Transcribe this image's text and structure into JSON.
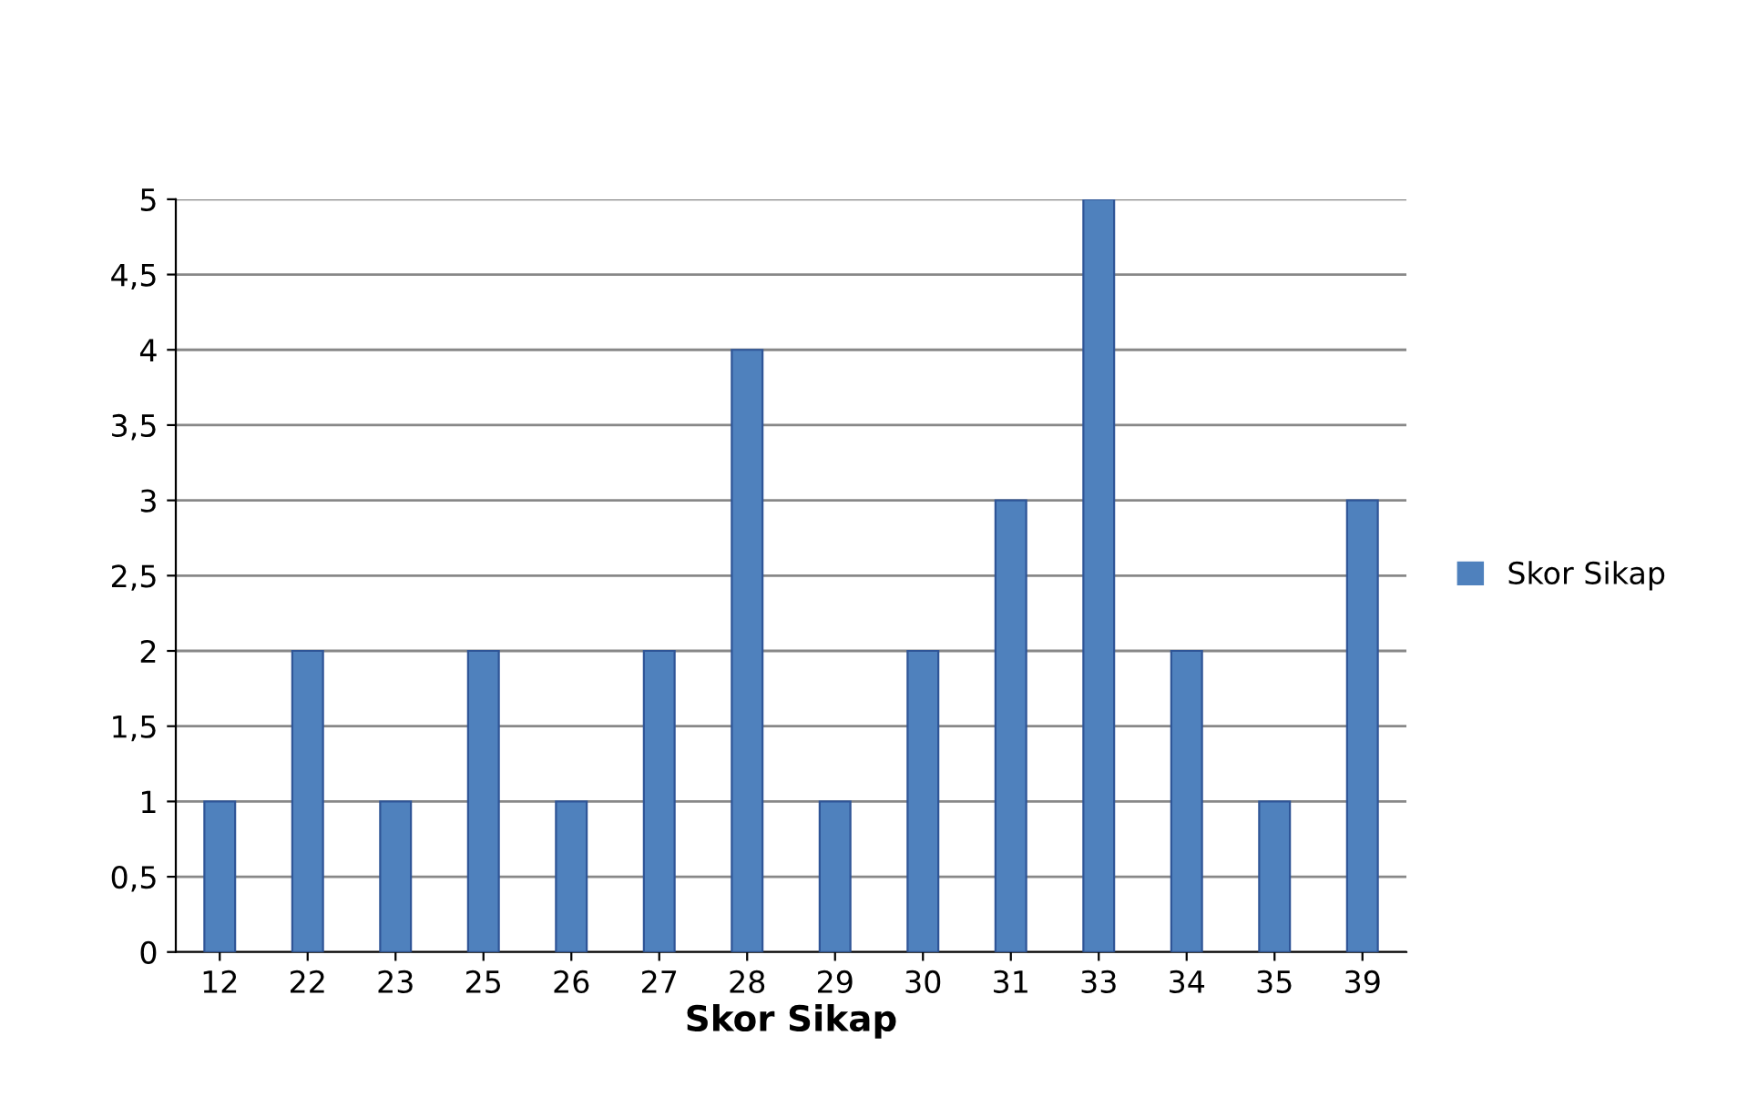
{
  "chart_data": {
    "type": "bar",
    "xlabel": "Skor Sikap",
    "categories": [
      "12",
      "22",
      "23",
      "25",
      "26",
      "27",
      "28",
      "29",
      "30",
      "31",
      "33",
      "34",
      "35",
      "39"
    ],
    "series": [
      {
        "name": "Skor Sikap",
        "color": "#4f81bd",
        "values": [
          1,
          2,
          1,
          2,
          1,
          2,
          4,
          1,
          2,
          3,
          5,
          2,
          1,
          3
        ]
      }
    ],
    "ylim": [
      0,
      5
    ],
    "yticks": [
      0,
      {
        "value": 0.5,
        "label": "0,5"
      },
      1,
      {
        "value": 1.5,
        "label": "1,5"
      },
      2,
      {
        "value": 2.5,
        "label": "2,5"
      },
      3,
      {
        "value": 3.5,
        "label": "3,5"
      },
      4,
      {
        "value": 4.5,
        "label": "4,5"
      },
      5
    ],
    "grid": "y",
    "legend": "right"
  }
}
